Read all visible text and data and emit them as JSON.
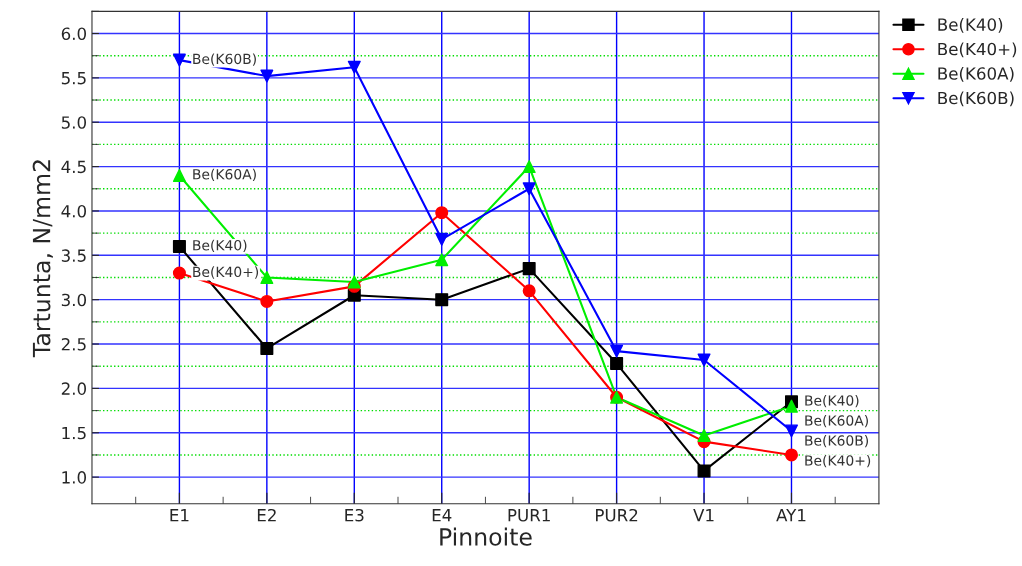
{
  "chart_data": {
    "type": "line",
    "xlabel": "Pinnoite",
    "ylabel": "Tartunta, N/mm2",
    "categories": [
      "E1",
      "E2",
      "E3",
      "E4",
      "PUR1",
      "PUR2",
      "V1",
      "AY1"
    ],
    "series": [
      {
        "name": "Be(K40)",
        "color": "#000000",
        "marker": "square",
        "values": [
          3.6,
          2.45,
          3.05,
          3.0,
          3.35,
          2.28,
          1.07,
          1.85
        ]
      },
      {
        "name": "Be(K40+)",
        "color": "#ff0000",
        "marker": "circle",
        "values": [
          3.3,
          2.98,
          3.15,
          3.98,
          3.1,
          1.9,
          1.4,
          1.25
        ]
      },
      {
        "name": "Be(K60A)",
        "color": "#00ee00",
        "marker": "triangle",
        "values": [
          4.4,
          3.25,
          3.2,
          3.45,
          4.5,
          1.9,
          1.47,
          1.8
        ]
      },
      {
        "name": "Be(K60B)",
        "color": "#0000ff",
        "marker": "triangle_down",
        "values": [
          5.7,
          5.52,
          5.62,
          3.68,
          4.25,
          2.42,
          2.32,
          1.52
        ]
      }
    ],
    "annotations": [
      {
        "text": "Be(K60B)",
        "x": "E1",
        "y": 5.7
      },
      {
        "text": "Be(K60A)",
        "x": "E1",
        "y": 4.4
      },
      {
        "text": "Be(K40)",
        "x": "E1",
        "y": 3.6
      },
      {
        "text": "Be(K40+)",
        "x": "E1",
        "y": 3.3
      },
      {
        "text": "Be(K40)",
        "x": "AY1",
        "y": 1.85
      },
      {
        "text": "Be(K60A)",
        "x": "AY1",
        "y": 1.8
      },
      {
        "text": "Be(K60B)",
        "x": "AY1",
        "y": 1.52
      },
      {
        "text": "Be(K40+)",
        "x": "AY1",
        "y": 1.25
      }
    ],
    "ylim": [
      0.7,
      6.25
    ],
    "yticks": [
      {
        "value": 1,
        "label": "1.0"
      },
      {
        "value": 1.25,
        "label": null
      },
      1.5,
      {
        "value": 1.75,
        "label": null
      },
      {
        "value": 2,
        "label": "2.0"
      },
      {
        "value": 2.25,
        "label": null
      },
      2.5,
      {
        "value": 2.75,
        "label": null
      },
      {
        "value": 3,
        "label": "3.0"
      },
      {
        "value": 3.25,
        "label": null
      },
      3.5,
      {
        "value": 3.75,
        "label": null
      },
      {
        "value": 4,
        "label": "4.0"
      },
      {
        "value": 4.25,
        "label": null
      },
      4.5,
      {
        "value": 4.75,
        "label": null
      },
      {
        "value": 5,
        "label": "5.0"
      },
      {
        "value": 5.25,
        "label": null
      },
      5.5,
      {
        "value": 5.75,
        "label": null
      },
      {
        "value": 6,
        "label": "6.0"
      },
      {
        "value": 6.25,
        "label": null
      }
    ],
    "grid": true,
    "legend": "top right",
    "line_style": "solid"
  }
}
